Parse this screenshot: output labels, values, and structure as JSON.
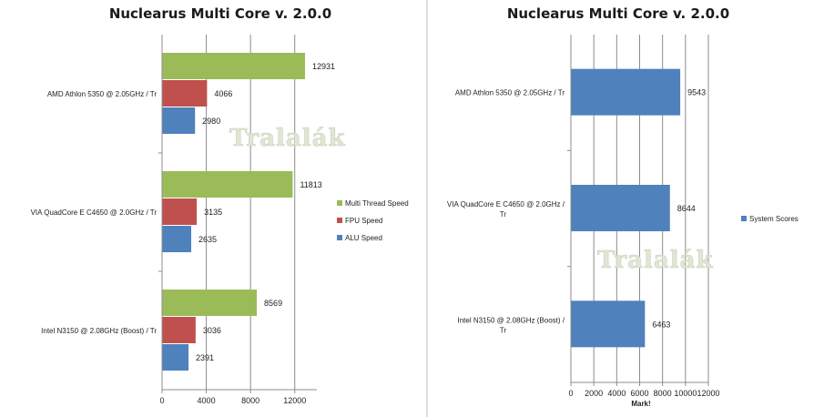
{
  "divider_color": "#bfbfbf",
  "watermark": "Tralalák",
  "chart_data": [
    {
      "type": "bar",
      "orientation": "horizontal",
      "title": "Nuclearus Multi Core v. 2.0.0",
      "categories": [
        "AMD Athlon 5350 @ 2.05GHz / Tr",
        "VIA QuadCore E C4650 @ 2.0GHz / Tr",
        "Intel N3150 @ 2.08GHz (Boost) / Tr"
      ],
      "series": [
        {
          "name": "Multi Thread Speed",
          "color": "#9bbb59",
          "values": [
            12931,
            11813,
            8569
          ]
        },
        {
          "name": "FPU Speed",
          "color": "#c0504d",
          "values": [
            4066,
            3135,
            3036
          ]
        },
        {
          "name": "ALU Speed",
          "color": "#4f81bd",
          "values": [
            2980,
            2635,
            2391
          ]
        }
      ],
      "xlim": [
        0,
        14000
      ],
      "xticks": [
        0,
        4000,
        8000,
        12000
      ],
      "xlabel": "",
      "ylabel": "",
      "grid": true,
      "legend": "right"
    },
    {
      "type": "bar",
      "orientation": "horizontal",
      "title": "Nuclearus Multi Core v. 2.0.0",
      "categories": [
        "AMD Athlon 5350 @ 2.05GHz / Tr",
        "VIA QuadCore E C4650 @ 2.0GHz / Tr",
        "Intel N3150 @ 2.08GHz (Boost) / Tr"
      ],
      "series": [
        {
          "name": "System Scores",
          "color": "#4f81bd",
          "values": [
            9543,
            8644,
            6463
          ]
        }
      ],
      "xlim": [
        0,
        12000
      ],
      "xticks": [
        0,
        2000,
        4000,
        6000,
        8000,
        10000,
        12000
      ],
      "xlabel": "Mark!",
      "ylabel": "",
      "grid": true,
      "legend": "right"
    }
  ]
}
